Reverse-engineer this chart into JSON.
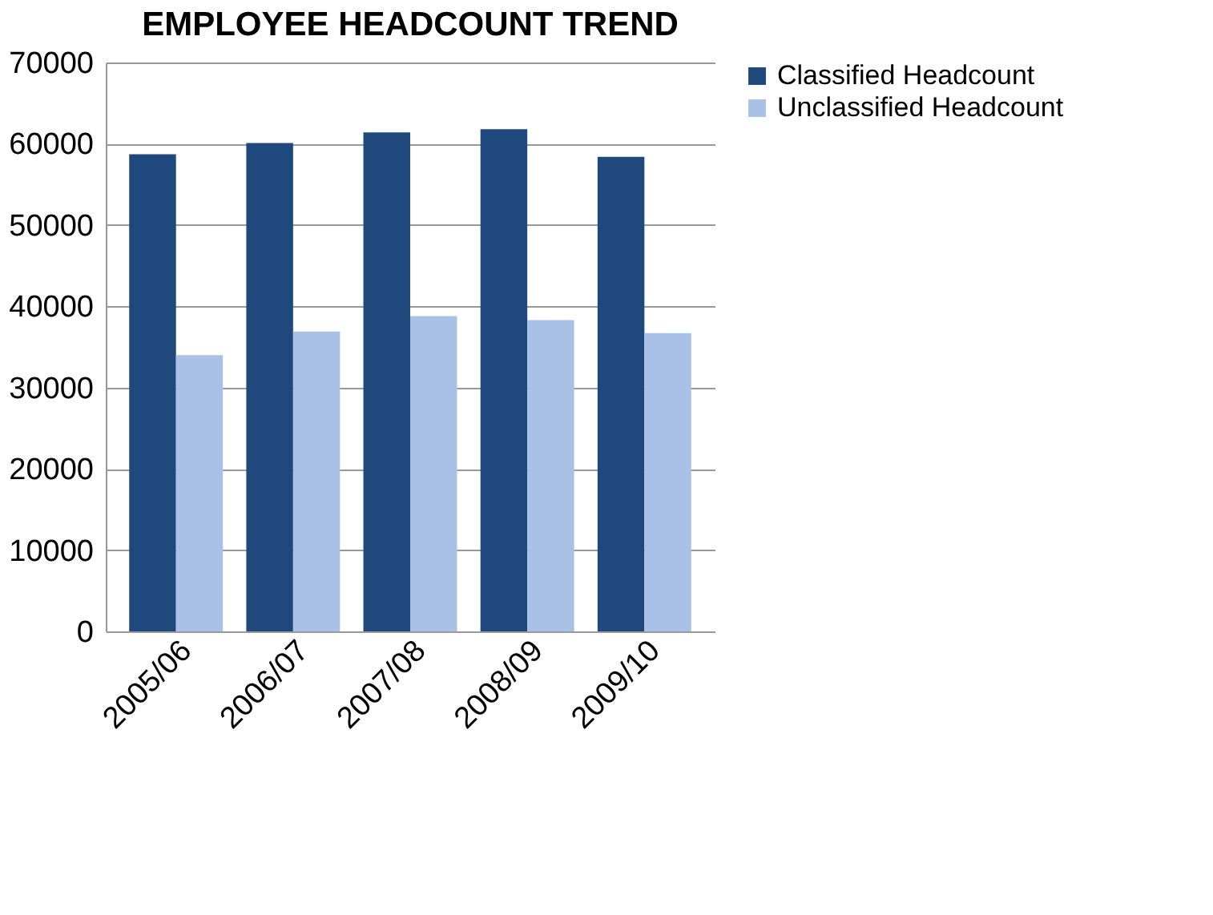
{
  "chart_data": {
    "type": "bar",
    "title": "EMPLOYEE HEADCOUNT TREND",
    "categories": [
      "2005/06",
      "2006/07",
      "2007/08",
      "2008/09",
      "2009/10"
    ],
    "series": [
      {
        "name": "Classified Headcount",
        "color": "#1f497d",
        "values": [
          58700,
          60100,
          61400,
          61800,
          58400
        ]
      },
      {
        "name": "Unclassified Headcount",
        "color": "#a9c1e6",
        "values": [
          34000,
          36900,
          38800,
          38300,
          36700
        ]
      }
    ],
    "ylim": [
      0,
      70000
    ],
    "yticks": [
      0,
      10000,
      20000,
      30000,
      40000,
      50000,
      60000,
      70000
    ],
    "grid": "y",
    "legend": "right"
  }
}
